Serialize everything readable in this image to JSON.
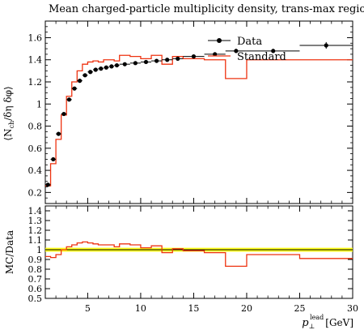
{
  "chart_data": [
    {
      "type": "line",
      "panel": "main",
      "title": "Mean charged-particle multiplicity density, trans-max region",
      "ylabel": "⟨N_ch/δη δφ⟩",
      "xlim": [
        1,
        30
      ],
      "ylim": [
        0.1,
        1.75
      ],
      "y_ticks": [
        0.2,
        0.4,
        0.6,
        0.8,
        1,
        1.2,
        1.4,
        1.6
      ],
      "legend": {
        "placement": "top-right",
        "entries": [
          "Data",
          "Standard"
        ]
      },
      "series": [
        {
          "name": "Data",
          "color": "#000000",
          "style": "points-with-xerr",
          "x": [
            1.25,
            1.75,
            2.25,
            2.75,
            3.25,
            3.75,
            4.25,
            4.75,
            5.25,
            5.75,
            6.25,
            6.75,
            7.25,
            7.75,
            8.5,
            9.5,
            10.5,
            11.5,
            12.5,
            13.5,
            15,
            17,
            19,
            22.5,
            27.5
          ],
          "xerr": [
            0.25,
            0.25,
            0.25,
            0.25,
            0.25,
            0.25,
            0.25,
            0.25,
            0.25,
            0.25,
            0.25,
            0.25,
            0.25,
            0.25,
            0.5,
            0.5,
            0.5,
            0.5,
            0.5,
            0.5,
            1,
            1,
            1,
            2.5,
            2.5
          ],
          "y": [
            0.27,
            0.5,
            0.73,
            0.91,
            1.04,
            1.14,
            1.21,
            1.26,
            1.29,
            1.31,
            1.32,
            1.33,
            1.34,
            1.35,
            1.36,
            1.37,
            1.38,
            1.39,
            1.4,
            1.41,
            1.43,
            1.45,
            1.48,
            1.48,
            1.53
          ],
          "yerr": [
            0.01,
            0.01,
            0.01,
            0.01,
            0.01,
            0.01,
            0.01,
            0.01,
            0.01,
            0.01,
            0.01,
            0.01,
            0.01,
            0.01,
            0.01,
            0.01,
            0.01,
            0.01,
            0.01,
            0.01,
            0.01,
            0.01,
            0.02,
            0.02,
            0.03
          ]
        },
        {
          "name": "Standard",
          "color": "#ee3311",
          "style": "step",
          "edges": [
            1,
            1.5,
            2,
            2.5,
            3,
            3.5,
            4,
            4.5,
            5,
            5.5,
            6,
            6.5,
            7,
            7.5,
            8,
            9,
            10,
            11,
            12,
            13,
            14,
            16,
            18,
            20,
            25,
            30
          ],
          "values": [
            0.26,
            0.46,
            0.68,
            0.9,
            1.07,
            1.2,
            1.3,
            1.36,
            1.38,
            1.39,
            1.38,
            1.4,
            1.4,
            1.39,
            1.44,
            1.43,
            1.41,
            1.44,
            1.36,
            1.43,
            1.41,
            1.4,
            1.23,
            1.4,
            1.4
          ]
        }
      ]
    },
    {
      "type": "line",
      "panel": "ratio",
      "ylabel": "MC/Data",
      "xlabel": "p_⊥^lead [GeV]",
      "xlim": [
        1,
        30
      ],
      "ylim": [
        0.5,
        1.45
      ],
      "x_ticks": [
        5,
        10,
        15,
        20,
        25,
        30
      ],
      "y_ticks": [
        0.5,
        0.6,
        0.7,
        0.8,
        0.9,
        1,
        1.1,
        1.2,
        1.3,
        1.4
      ],
      "band": {
        "low": 0.98,
        "high": 1.02,
        "color": "#ffff00"
      },
      "reference_line": 1.0,
      "series": [
        {
          "name": "Standard",
          "color": "#ee3311",
          "style": "step",
          "edges": [
            1,
            1.5,
            2,
            2.5,
            3,
            3.5,
            4,
            4.5,
            5,
            5.5,
            6,
            6.5,
            7,
            7.5,
            8,
            9,
            10,
            11,
            12,
            13,
            14,
            16,
            18,
            20,
            25,
            30
          ],
          "values": [
            0.93,
            0.92,
            0.95,
            1.0,
            1.03,
            1.05,
            1.07,
            1.08,
            1.07,
            1.06,
            1.05,
            1.05,
            1.05,
            1.03,
            1.06,
            1.05,
            1.02,
            1.04,
            0.97,
            1.01,
            0.99,
            0.97,
            0.83,
            0.95,
            0.91
          ]
        }
      ]
    }
  ]
}
